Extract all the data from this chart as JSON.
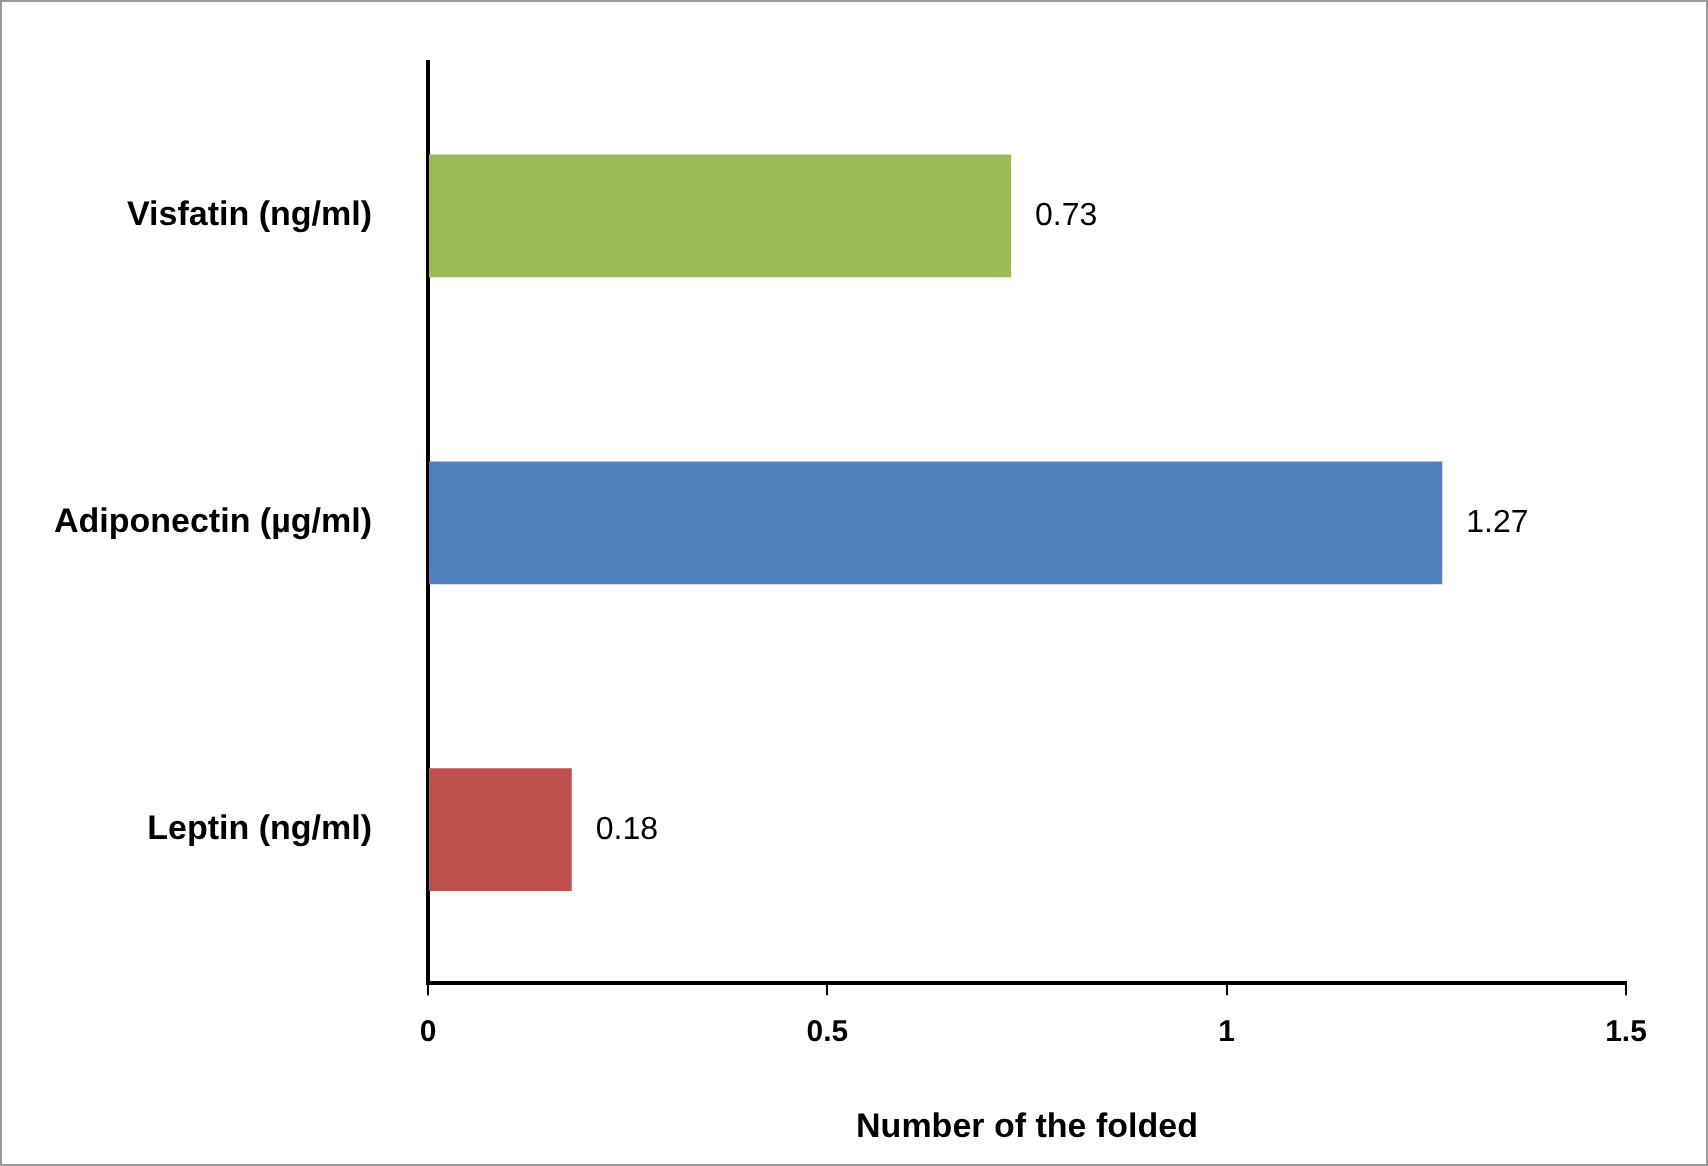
{
  "chart_data": {
    "type": "bar",
    "orientation": "horizontal",
    "xlabel": "Number of the folded",
    "categories": [
      "Visfatin (ng/ml)",
      "Adiponectin (µg/ml)",
      "Leptin (ng/ml)"
    ],
    "values": [
      0.73,
      1.27,
      0.18
    ],
    "colors": [
      "#9bbb59",
      "#4f81bd",
      "#c0504d"
    ],
    "xlim": [
      0,
      1.5
    ],
    "xticks": [
      0,
      0.5,
      1,
      1.5
    ],
    "data_labels": true,
    "grid": false,
    "legend": false
  }
}
